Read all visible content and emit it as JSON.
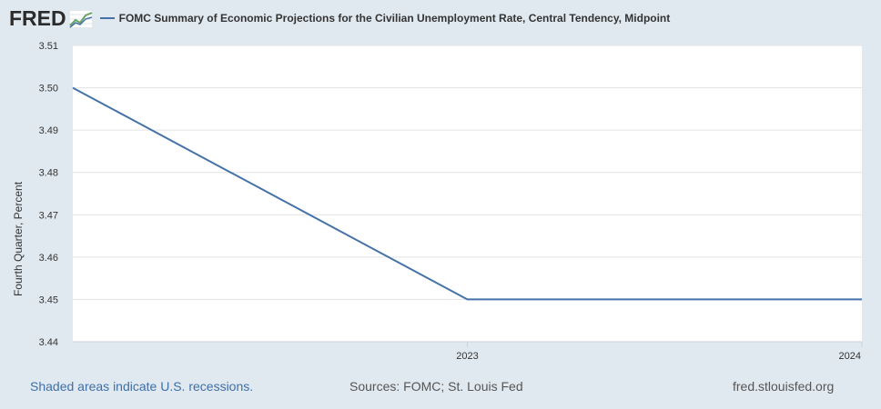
{
  "header": {
    "logo_text": "FRED",
    "series_title": "FOMC Summary of Economic Projections for the Civilian Unemployment Rate, Central Tendency, Midpoint"
  },
  "colors": {
    "line": "#4572a7",
    "background": "#e1e9f0",
    "plot_bg": "#ffffff",
    "grid": "#e3e3e3",
    "footer_link": "#3f6fa8"
  },
  "footer": {
    "recession_note": "Shaded areas indicate U.S. recessions.",
    "sources": "Sources: FOMC; St. Louis Fed",
    "site": "fred.stlouisfed.org"
  },
  "chart_data": {
    "type": "line",
    "title": "FOMC Summary of Economic Projections for the Civilian Unemployment Rate, Central Tendency, Midpoint",
    "ylabel": "Fourth Quarter, Percent",
    "xlabel": "",
    "ylim": [
      3.44,
      3.51
    ],
    "yticks": [
      "3.44",
      "3.45",
      "3.46",
      "3.47",
      "3.48",
      "3.49",
      "3.50",
      "3.51"
    ],
    "xlim": [
      2022,
      2024
    ],
    "xticks": [
      {
        "value": 2023,
        "label": "2023"
      },
      {
        "value": 2024,
        "label": "2024"
      }
    ],
    "grid": true,
    "series": [
      {
        "name": "FOMC Summary of Economic Projections for the Civilian Unemployment Rate, Central Tendency, Midpoint",
        "x": [
          2022,
          2023,
          2024
        ],
        "values": [
          3.5,
          3.45,
          3.45
        ]
      }
    ]
  }
}
